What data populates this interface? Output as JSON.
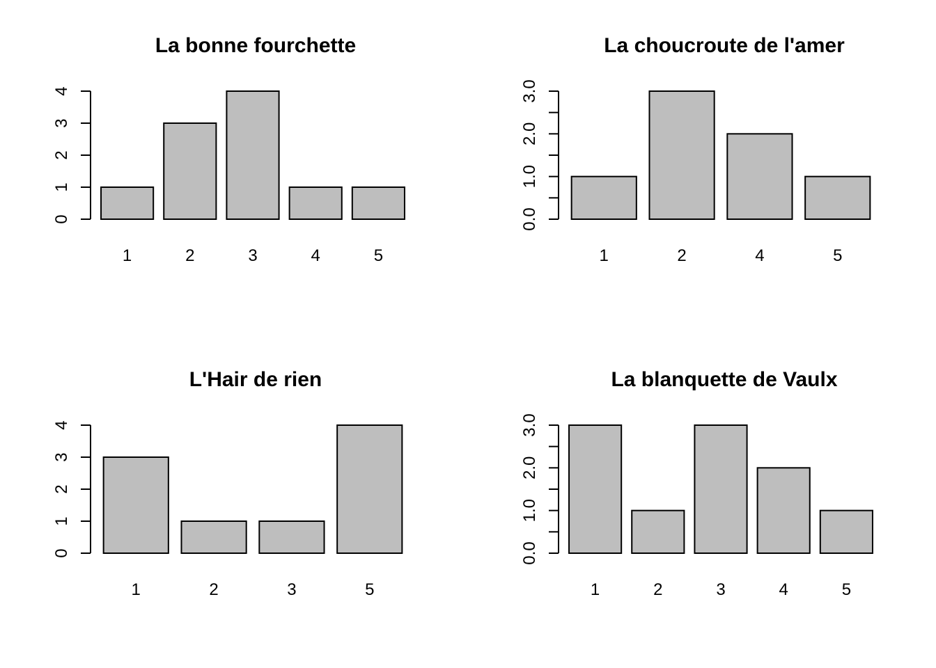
{
  "chart_data": [
    {
      "type": "bar",
      "title": "La bonne fourchette",
      "categories": [
        "1",
        "2",
        "3",
        "4",
        "5"
      ],
      "values": [
        1,
        3,
        4,
        1,
        1
      ],
      "ylim": [
        0,
        4
      ],
      "yticks": [
        0,
        1,
        2,
        3,
        4
      ],
      "ytick_labels": [
        "0",
        "1",
        "2",
        "3",
        "4"
      ],
      "xlabel": "",
      "ylabel": "",
      "grid": false,
      "bar_color": "#bebebe"
    },
    {
      "type": "bar",
      "title": "La choucroute de l'amer",
      "categories": [
        "1",
        "2",
        "4",
        "5"
      ],
      "values": [
        1,
        3,
        2,
        1
      ],
      "ylim": [
        0,
        3
      ],
      "yticks": [
        0,
        0.5,
        1,
        1.5,
        2,
        2.5,
        3
      ],
      "ytick_labels": [
        "0.0",
        "",
        "1.0",
        "",
        "2.0",
        "",
        "3.0"
      ],
      "xlabel": "",
      "ylabel": "",
      "grid": false,
      "bar_color": "#bebebe"
    },
    {
      "type": "bar",
      "title": "L'Hair de rien",
      "categories": [
        "1",
        "2",
        "3",
        "5"
      ],
      "values": [
        3,
        1,
        1,
        4
      ],
      "ylim": [
        0,
        4
      ],
      "yticks": [
        0,
        1,
        2,
        3,
        4
      ],
      "ytick_labels": [
        "0",
        "1",
        "2",
        "3",
        "4"
      ],
      "xlabel": "",
      "ylabel": "",
      "grid": false,
      "bar_color": "#bebebe"
    },
    {
      "type": "bar",
      "title": "La blanquette de Vaulx",
      "categories": [
        "1",
        "2",
        "3",
        "4",
        "5"
      ],
      "values": [
        3,
        1,
        3,
        2,
        1
      ],
      "ylim": [
        0,
        3
      ],
      "yticks": [
        0,
        0.5,
        1,
        1.5,
        2,
        2.5,
        3
      ],
      "ytick_labels": [
        "0.0",
        "",
        "1.0",
        "",
        "2.0",
        "",
        "3.0"
      ],
      "xlabel": "",
      "ylabel": "",
      "grid": false,
      "bar_color": "#bebebe"
    }
  ]
}
